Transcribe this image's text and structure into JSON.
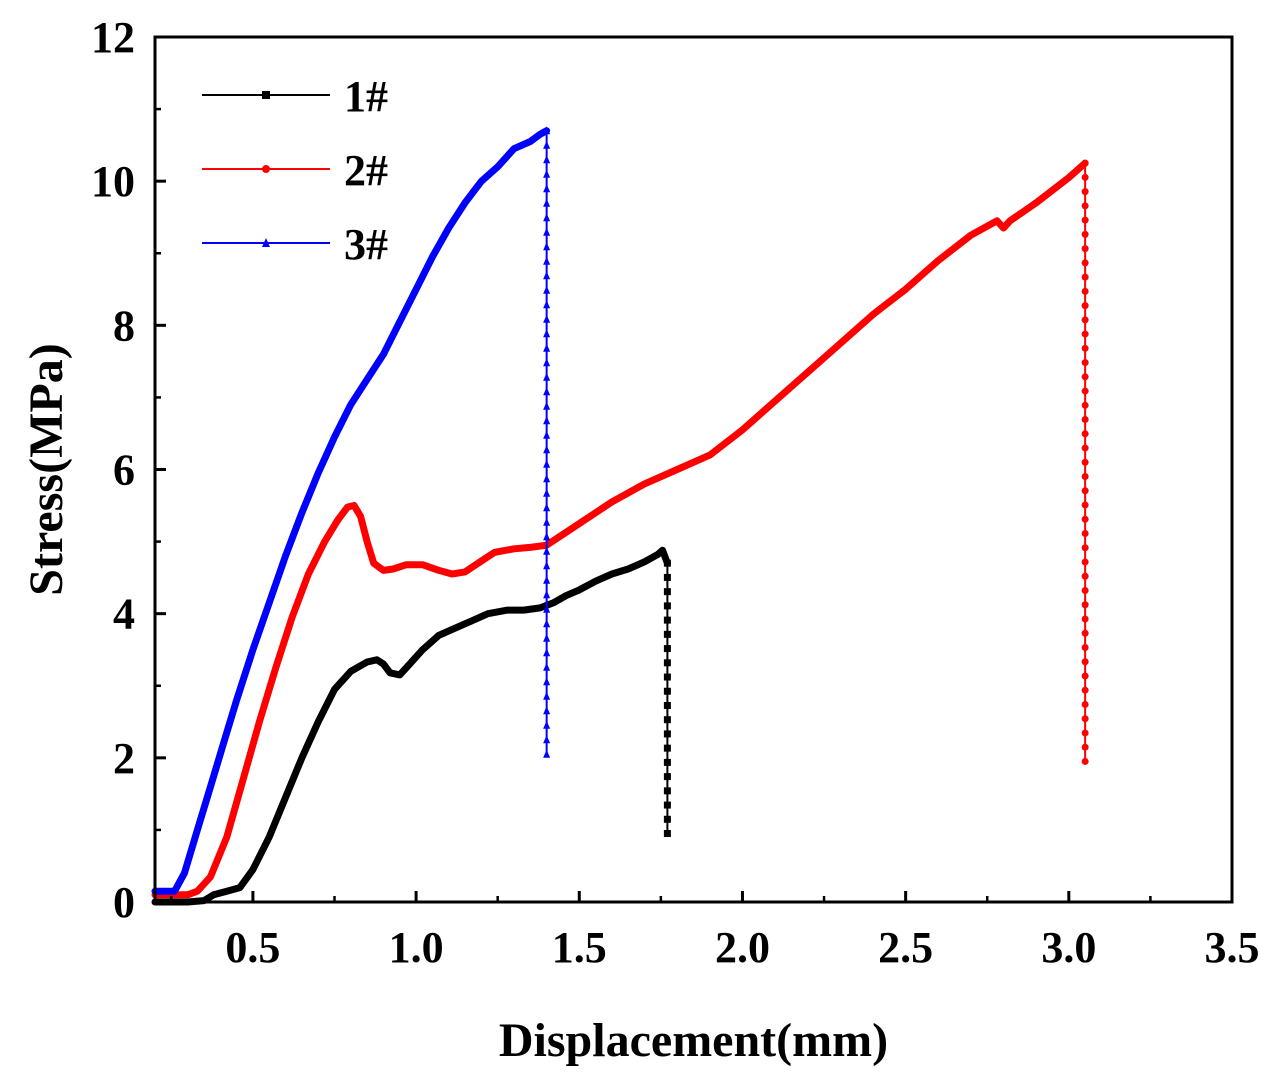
{
  "chart_data": {
    "type": "line",
    "title": "",
    "xlabel": "Displacement(mm)",
    "ylabel": "Stress(MPa)",
    "xlim": [
      0.2,
      3.5
    ],
    "ylim": [
      0,
      12
    ],
    "xticks": [
      0.5,
      1.0,
      1.5,
      2.0,
      2.5,
      3.0,
      3.5
    ],
    "xtick_labels": [
      "0.5",
      "1.0",
      "1.5",
      "2.0",
      "2.5",
      "3.0",
      "3.5"
    ],
    "yticks": [
      0,
      2,
      4,
      6,
      8,
      10,
      12
    ],
    "ytick_labels": [
      "0",
      "2",
      "4",
      "6",
      "8",
      "10",
      "12"
    ],
    "grid": false,
    "legend_position": "top-left",
    "series": [
      {
        "name": "1#",
        "color": "#000000",
        "marker": "square",
        "x": [
          0.2,
          0.3,
          0.35,
          0.38,
          0.42,
          0.46,
          0.5,
          0.55,
          0.6,
          0.65,
          0.7,
          0.75,
          0.8,
          0.85,
          0.88,
          0.9,
          0.92,
          0.95,
          0.98,
          1.02,
          1.07,
          1.12,
          1.17,
          1.22,
          1.28,
          1.33,
          1.38,
          1.42,
          1.46,
          1.5,
          1.55,
          1.6,
          1.65,
          1.7,
          1.74,
          1.755,
          1.77
        ],
        "y": [
          0.0,
          0.0,
          0.02,
          0.1,
          0.15,
          0.2,
          0.45,
          0.9,
          1.45,
          2.0,
          2.5,
          2.95,
          3.2,
          3.33,
          3.36,
          3.3,
          3.18,
          3.15,
          3.3,
          3.5,
          3.7,
          3.8,
          3.9,
          4.0,
          4.05,
          4.05,
          4.08,
          4.15,
          4.25,
          4.33,
          4.45,
          4.55,
          4.62,
          4.72,
          4.82,
          4.88,
          4.7
        ],
        "drop_x": 1.77,
        "drop_to": 0.95
      },
      {
        "name": "2#",
        "color": "#ff0000",
        "marker": "circle",
        "x": [
          0.2,
          0.3,
          0.33,
          0.37,
          0.42,
          0.47,
          0.52,
          0.57,
          0.62,
          0.67,
          0.72,
          0.76,
          0.79,
          0.81,
          0.83,
          0.85,
          0.87,
          0.9,
          0.93,
          0.97,
          1.02,
          1.07,
          1.11,
          1.15,
          1.19,
          1.24,
          1.3,
          1.35,
          1.4,
          1.5,
          1.6,
          1.7,
          1.8,
          1.9,
          2.0,
          2.1,
          2.2,
          2.3,
          2.4,
          2.5,
          2.6,
          2.7,
          2.78,
          2.8,
          2.82,
          2.9,
          3.0,
          3.05
        ],
        "y": [
          0.1,
          0.1,
          0.15,
          0.35,
          0.9,
          1.7,
          2.5,
          3.25,
          3.95,
          4.55,
          5.0,
          5.3,
          5.48,
          5.5,
          5.35,
          5.0,
          4.7,
          4.6,
          4.62,
          4.68,
          4.68,
          4.6,
          4.55,
          4.58,
          4.7,
          4.85,
          4.9,
          4.92,
          4.95,
          5.25,
          5.55,
          5.8,
          6.0,
          6.2,
          6.55,
          6.95,
          7.35,
          7.75,
          8.15,
          8.5,
          8.9,
          9.25,
          9.45,
          9.35,
          9.45,
          9.7,
          10.05,
          10.25
        ],
        "drop_x": 3.05,
        "drop_to": 1.95
      },
      {
        "name": "3#",
        "color": "#0000ff",
        "marker": "triangle",
        "x": [
          0.2,
          0.26,
          0.29,
          0.33,
          0.37,
          0.41,
          0.45,
          0.5,
          0.55,
          0.6,
          0.65,
          0.7,
          0.75,
          0.8,
          0.85,
          0.9,
          0.95,
          1.0,
          1.05,
          1.1,
          1.15,
          1.2,
          1.25,
          1.3,
          1.35,
          1.38,
          1.4
        ],
        "y": [
          0.15,
          0.15,
          0.4,
          1.0,
          1.6,
          2.2,
          2.8,
          3.5,
          4.15,
          4.8,
          5.4,
          5.95,
          6.45,
          6.9,
          7.25,
          7.6,
          8.05,
          8.5,
          8.95,
          9.35,
          9.7,
          10.0,
          10.2,
          10.45,
          10.55,
          10.65,
          10.7
        ],
        "drop_x": 1.4,
        "drop_to": 2.05
      }
    ]
  }
}
